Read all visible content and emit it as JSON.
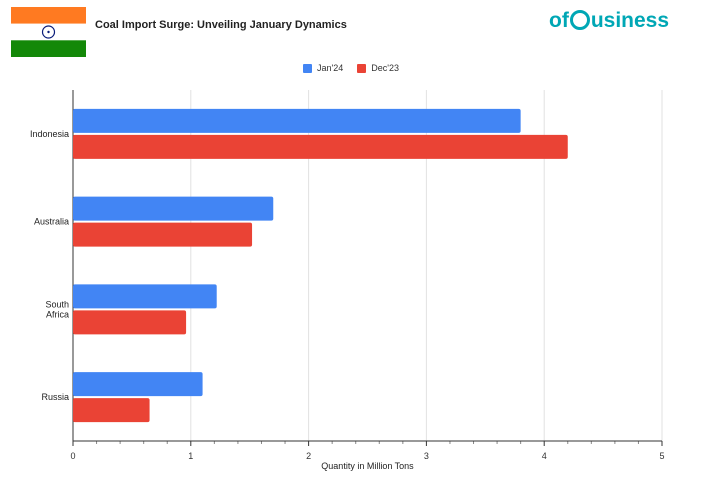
{
  "header": {
    "title": "Coal Import Surge: Unveiling January Dynamics",
    "logo_text_left": "of",
    "logo_text_right": "usiness",
    "flag_icon": "india-flag-icon"
  },
  "colors": {
    "jan": "#4285f4",
    "dec": "#ea4335",
    "logo": "#00a7b5",
    "saffron": "#ff7a21",
    "green": "#138808",
    "chakra": "#0a1d7a"
  },
  "chart_data": {
    "type": "bar",
    "orientation": "horizontal",
    "title": "Coal Import Surge: Unveiling January Dynamics",
    "xlabel": "Quantity in Million Tons",
    "ylabel": "",
    "categories": [
      "Indonesia",
      "Australia",
      "South Africa",
      "Russia"
    ],
    "category_lines": [
      [
        "Indonesia"
      ],
      [
        "Australia"
      ],
      [
        "South",
        "Africa"
      ],
      [
        "Russia"
      ]
    ],
    "series": [
      {
        "name": "Jan'24",
        "values": [
          3.8,
          1.7,
          1.22,
          1.1
        ]
      },
      {
        "name": "Dec'23",
        "values": [
          4.2,
          1.52,
          0.96,
          0.65
        ]
      }
    ],
    "xlim": [
      0,
      5
    ],
    "xticks": [
      "0",
      "1",
      "2",
      "3",
      "4",
      "5"
    ],
    "grid": true,
    "legend_position": "top-center"
  }
}
